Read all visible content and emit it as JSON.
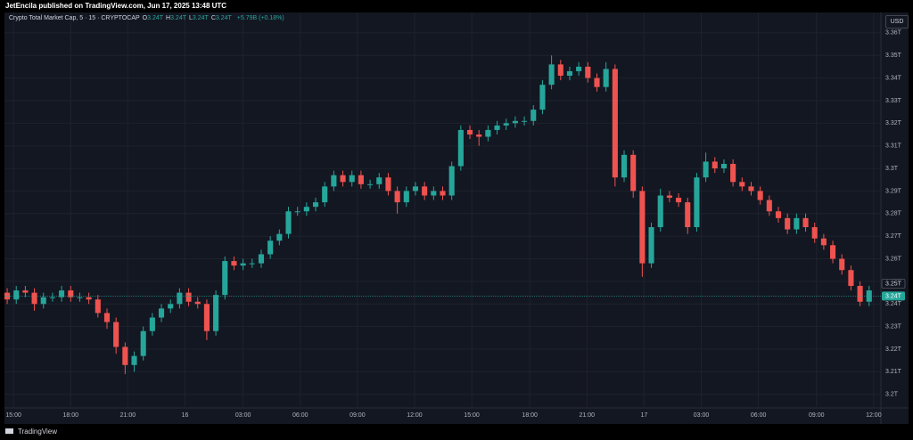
{
  "header": "JetEncila published on TradingView.com, Jun 17, 2025 13:48 UTC",
  "footer": "TradingView",
  "chart_data": {
    "type": "candlestick",
    "title": "Crypto Total Market Cap, 5 · 15 · CRYPTOCAP",
    "legend_values": [
      {
        "key": "O",
        "label": "3.24T"
      },
      {
        "key": "H",
        "label": "3.24T"
      },
      {
        "key": "L",
        "label": "3.24T"
      },
      {
        "key": "C",
        "label": "3.24T"
      }
    ],
    "change": "+5.79B (+0.18%)",
    "currency": "USD",
    "up_color": "#26a69a",
    "down_color": "#ef5350",
    "grid": true,
    "open": [
      3.245,
      3.242,
      3.246,
      3.245,
      3.24,
      3.243,
      3.243,
      3.246,
      3.243,
      3.243,
      3.242,
      3.236,
      3.232,
      3.221,
      3.213,
      3.217,
      3.228,
      3.234,
      3.238,
      3.24,
      3.245,
      3.241,
      3.24,
      3.228,
      3.244,
      3.259,
      3.257,
      3.258,
      3.258,
      3.262,
      3.268,
      3.271,
      3.281,
      3.281,
      3.283,
      3.285,
      3.292,
      3.297,
      3.294,
      3.297,
      3.293,
      3.293,
      3.296,
      3.29,
      3.285,
      3.29,
      3.292,
      3.288,
      3.29,
      3.288,
      3.301,
      3.317,
      3.315,
      3.314,
      3.317,
      3.319,
      3.32,
      3.321,
      3.321,
      3.326,
      3.337,
      3.346,
      3.341,
      3.343,
      3.345,
      3.34,
      3.336,
      3.344,
      3.296,
      3.306,
      3.29,
      3.258,
      3.274,
      3.288,
      3.287,
      3.285,
      3.274,
      3.296,
      3.303,
      3.3,
      3.302,
      3.294,
      3.292,
      3.29,
      3.286,
      3.281,
      3.278,
      3.273,
      3.278,
      3.274,
      3.269,
      3.266,
      3.26,
      3.255,
      3.248,
      3.241
    ],
    "high": [
      3.247,
      3.248,
      3.248,
      3.247,
      3.245,
      3.245,
      3.248,
      3.248,
      3.245,
      3.245,
      3.244,
      3.238,
      3.234,
      3.223,
      3.219,
      3.23,
      3.236,
      3.24,
      3.242,
      3.247,
      3.247,
      3.243,
      3.242,
      3.246,
      3.261,
      3.261,
      3.26,
      3.26,
      3.264,
      3.27,
      3.273,
      3.283,
      3.283,
      3.285,
      3.287,
      3.294,
      3.299,
      3.299,
      3.299,
      3.299,
      3.295,
      3.298,
      3.298,
      3.292,
      3.292,
      3.294,
      3.294,
      3.292,
      3.292,
      3.303,
      3.319,
      3.319,
      3.317,
      3.319,
      3.321,
      3.322,
      3.323,
      3.323,
      3.328,
      3.339,
      3.35,
      3.348,
      3.345,
      3.347,
      3.347,
      3.342,
      3.347,
      3.346,
      3.308,
      3.308,
      3.292,
      3.276,
      3.291,
      3.29,
      3.289,
      3.287,
      3.298,
      3.307,
      3.305,
      3.304,
      3.304,
      3.296,
      3.294,
      3.292,
      3.288,
      3.283,
      3.28,
      3.28,
      3.28,
      3.276,
      3.271,
      3.268,
      3.262,
      3.257,
      3.25,
      3.248
    ],
    "low": [
      3.24,
      3.24,
      3.243,
      3.237,
      3.238,
      3.241,
      3.241,
      3.241,
      3.241,
      3.24,
      3.234,
      3.229,
      3.218,
      3.209,
      3.21,
      3.215,
      3.226,
      3.232,
      3.236,
      3.238,
      3.239,
      3.238,
      3.224,
      3.226,
      3.242,
      3.255,
      3.255,
      3.256,
      3.256,
      3.26,
      3.266,
      3.269,
      3.279,
      3.279,
      3.281,
      3.283,
      3.29,
      3.292,
      3.292,
      3.291,
      3.291,
      3.291,
      3.288,
      3.28,
      3.283,
      3.288,
      3.286,
      3.286,
      3.286,
      3.286,
      3.299,
      3.313,
      3.31,
      3.312,
      3.315,
      3.317,
      3.318,
      3.319,
      3.319,
      3.324,
      3.335,
      3.339,
      3.339,
      3.341,
      3.338,
      3.334,
      3.334,
      3.292,
      3.294,
      3.287,
      3.252,
      3.256,
      3.272,
      3.285,
      3.283,
      3.271,
      3.272,
      3.294,
      3.298,
      3.298,
      3.292,
      3.29,
      3.288,
      3.284,
      3.279,
      3.276,
      3.271,
      3.271,
      3.272,
      3.267,
      3.264,
      3.258,
      3.253,
      3.246,
      3.239,
      3.239
    ],
    "close": [
      3.242,
      3.246,
      3.245,
      3.24,
      3.243,
      3.243,
      3.246,
      3.243,
      3.243,
      3.242,
      3.236,
      3.232,
      3.221,
      3.213,
      3.217,
      3.228,
      3.234,
      3.238,
      3.24,
      3.245,
      3.241,
      3.24,
      3.228,
      3.244,
      3.259,
      3.257,
      3.258,
      3.258,
      3.262,
      3.268,
      3.271,
      3.281,
      3.281,
      3.283,
      3.285,
      3.292,
      3.297,
      3.294,
      3.297,
      3.293,
      3.293,
      3.296,
      3.29,
      3.285,
      3.29,
      3.292,
      3.288,
      3.29,
      3.288,
      3.301,
      3.317,
      3.315,
      3.314,
      3.317,
      3.319,
      3.32,
      3.321,
      3.321,
      3.326,
      3.337,
      3.346,
      3.341,
      3.343,
      3.345,
      3.34,
      3.336,
      3.344,
      3.296,
      3.306,
      3.29,
      3.258,
      3.274,
      3.288,
      3.287,
      3.285,
      3.274,
      3.296,
      3.303,
      3.3,
      3.302,
      3.294,
      3.292,
      3.29,
      3.286,
      3.281,
      3.278,
      3.273,
      3.278,
      3.274,
      3.269,
      3.266,
      3.26,
      3.255,
      3.248,
      3.241,
      3.246
    ],
    "xlim": [
      -0.3,
      96.3
    ],
    "xticks": [
      {
        "value": 0.7,
        "label": "15:00"
      },
      {
        "value": 7.0,
        "label": "18:00"
      },
      {
        "value": 13.3,
        "label": "21:00"
      },
      {
        "value": 19.6,
        "label": "16"
      },
      {
        "value": 26.0,
        "label": "03:00"
      },
      {
        "value": 32.3,
        "label": "06:00"
      },
      {
        "value": 38.6,
        "label": "09:00"
      },
      {
        "value": 44.9,
        "label": "12:00"
      },
      {
        "value": 51.2,
        "label": "15:00"
      },
      {
        "value": 57.6,
        "label": "18:00"
      },
      {
        "value": 63.9,
        "label": "21:00"
      },
      {
        "value": 70.2,
        "label": "17"
      },
      {
        "value": 76.5,
        "label": "03:00"
      },
      {
        "value": 82.8,
        "label": "06:00"
      },
      {
        "value": 89.2,
        "label": "09:00"
      },
      {
        "value": 95.5,
        "label": "12:00"
      }
    ],
    "ylim": [
      3.194,
      3.369
    ],
    "yticks": [
      {
        "value": 3.2,
        "label": "3.2T"
      },
      {
        "value": 3.21,
        "label": "3.21T"
      },
      {
        "value": 3.22,
        "label": "3.22T"
      },
      {
        "value": 3.23,
        "label": "3.23T"
      },
      {
        "value": 3.24,
        "label": "3.24T"
      },
      {
        "value": 3.25,
        "label": "3.25T"
      },
      {
        "value": 3.26,
        "label": "3.26T"
      },
      {
        "value": 3.27,
        "label": "3.27T"
      },
      {
        "value": 3.28,
        "label": "3.28T"
      },
      {
        "value": 3.29,
        "label": "3.29T"
      },
      {
        "value": 3.3,
        "label": "3.3T"
      },
      {
        "value": 3.31,
        "label": "3.31T"
      },
      {
        "value": 3.32,
        "label": "3.32T"
      },
      {
        "value": 3.33,
        "label": "3.33T"
      },
      {
        "value": 3.34,
        "label": "3.34T"
      },
      {
        "value": 3.35,
        "label": "3.35T"
      },
      {
        "value": 3.36,
        "label": "3.36T"
      }
    ],
    "price_markers": [
      {
        "value": 3.249,
        "label": "3.25T",
        "color": "#131722",
        "line": false
      },
      {
        "value": 3.2435,
        "label": "3.24T",
        "color": "#26a69a",
        "line": true
      }
    ]
  }
}
